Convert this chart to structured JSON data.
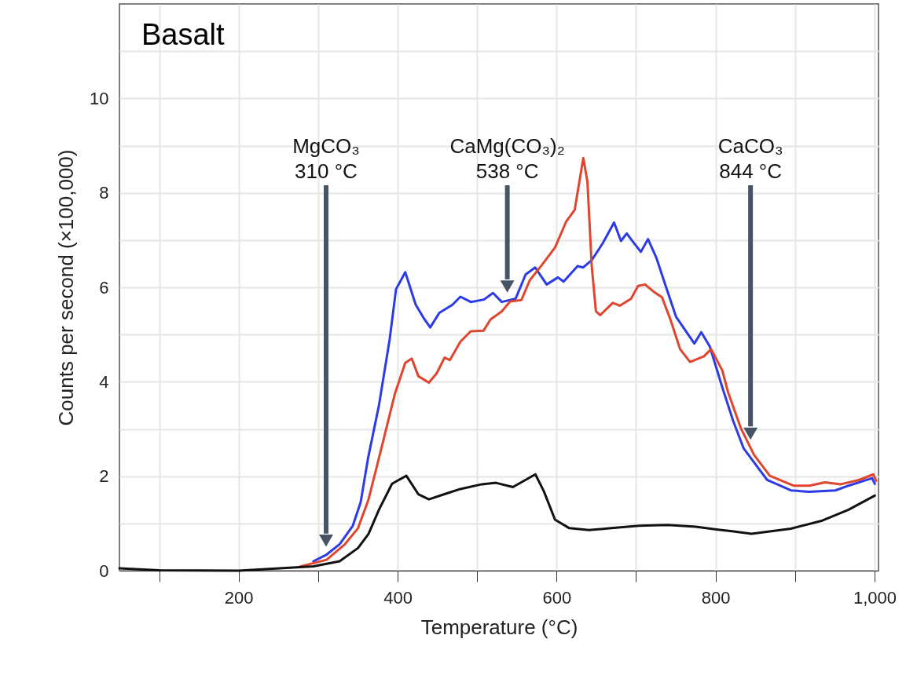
{
  "chart_data": {
    "type": "line",
    "title": "Basalt",
    "xlabel": "Temperature (°C)",
    "ylabel": "Counts per second (×100,000)",
    "xlim": [
      50,
      1005
    ],
    "ylim": [
      0,
      12
    ],
    "xticks": [
      {
        "value": 100,
        "label": null
      },
      200,
      {
        "value": 300,
        "label": null
      },
      400,
      {
        "value": 500,
        "label": null
      },
      600,
      {
        "value": 700,
        "label": null
      },
      800,
      {
        "value": 900,
        "label": null
      },
      {
        "value": 1000,
        "label": "1,000"
      }
    ],
    "yticks": [
      0,
      {
        "value": 1,
        "label": null
      },
      2,
      {
        "value": 3,
        "label": null
      },
      4,
      {
        "value": 5,
        "label": null
      },
      6,
      {
        "value": 7,
        "label": null
      },
      8,
      {
        "value": 9,
        "label": null
      },
      10,
      {
        "value": 11,
        "label": null
      }
    ],
    "grid": true,
    "line_style": "solid",
    "series": [
      {
        "color": "#2b3be6",
        "x": [
          294,
          310.6,
          327,
          343.6,
          353.5,
          363,
          376.5,
          390,
          398,
          409.6,
          422.8,
          432.7,
          441,
          452.5,
          469,
          479,
          492,
          508.6,
          520,
          531,
          548.5,
          561,
          573,
          587.5,
          601.7,
          608.8,
          626.4,
          633.5,
          644,
          658,
          672.3,
          681,
          688.3,
          695.4,
          706,
          715,
          725.4,
          736,
          750.2,
          773.3,
          782,
          792.7,
          808.5,
          822,
          835.3,
          848.5,
          865,
          894.7,
          917.8,
          950.8,
          967.3,
          997,
          1000.3
        ],
        "values": [
          0.2,
          0.34,
          0.56,
          0.95,
          1.45,
          2.4,
          3.5,
          4.9,
          5.96,
          6.32,
          5.63,
          5.35,
          5.15,
          5.46,
          5.63,
          5.8,
          5.69,
          5.74,
          5.88,
          5.69,
          5.76,
          6.27,
          6.42,
          6.06,
          6.21,
          6.12,
          6.45,
          6.42,
          6.57,
          6.93,
          7.37,
          6.98,
          7.14,
          6.98,
          6.75,
          7.02,
          6.63,
          6.09,
          5.38,
          4.81,
          5.05,
          4.75,
          3.88,
          3.18,
          2.59,
          2.29,
          1.92,
          1.7,
          1.67,
          1.7,
          1.8,
          1.96,
          1.84
        ]
      },
      {
        "color": "#e0452e",
        "x": [
          277.5,
          310.6,
          333.7,
          350.2,
          363.4,
          380,
          396.3,
          409.6,
          417.8,
          426,
          439.3,
          449.2,
          459,
          465.7,
          479,
          492,
          508,
          516.8,
          531,
          541.6,
          555.7,
          566.3,
          580.5,
          598,
          612.3,
          622.8,
          633.6,
          638.8,
          644.2,
          649.5,
          654.8,
          670.7,
          679.5,
          693.7,
          702.5,
          711.3,
          721.9,
          732.6,
          743.2,
          755.4,
          767.9,
          785.5,
          794.4,
          808.5,
          815.5,
          832,
          848.5,
          868.3,
          898,
          917.8,
          937.6,
          957.4,
          980.5,
          998.7,
          1002
        ],
        "values": [
          0.09,
          0.23,
          0.56,
          0.9,
          1.51,
          2.62,
          3.73,
          4.4,
          4.49,
          4.12,
          3.98,
          4.18,
          4.51,
          4.46,
          4.85,
          5.07,
          5.08,
          5.32,
          5.49,
          5.7,
          5.73,
          6.15,
          6.45,
          6.84,
          7.4,
          7.64,
          8.74,
          8.24,
          6.45,
          5.49,
          5.41,
          5.67,
          5.61,
          5.76,
          6.03,
          6.06,
          5.91,
          5.79,
          5.32,
          4.69,
          4.42,
          4.54,
          4.69,
          4.24,
          3.79,
          3.01,
          2.45,
          2.01,
          1.8,
          1.8,
          1.87,
          1.83,
          1.92,
          2.04,
          1.9
        ]
      },
      {
        "color": "#111111",
        "x": [
          50,
          100,
          200,
          294,
          327,
          350.2,
          363.4,
          376.5,
          393,
          411,
          426,
          439.3,
          459,
          479,
          506,
          523.8,
          545,
          573.3,
          584,
          598,
          616,
          640.6,
          669,
          704,
          739.6,
          775,
          803,
          818.8,
          845.2,
          894.7,
          934.3,
          967.3,
          1000.3
        ],
        "values": [
          0.05,
          0.01,
          0.0,
          0.09,
          0.2,
          0.48,
          0.78,
          1.29,
          1.84,
          2.01,
          1.62,
          1.51,
          1.62,
          1.73,
          1.83,
          1.86,
          1.77,
          2.04,
          1.68,
          1.08,
          0.9,
          0.86,
          0.9,
          0.95,
          0.97,
          0.93,
          0.87,
          0.84,
          0.78,
          0.89,
          1.06,
          1.29,
          1.59
        ]
      }
    ],
    "ref_lines": [
      {
        "axis": "x",
        "value": 310,
        "label": "MgCO₃\n310 °C",
        "color": "#475465"
      },
      {
        "axis": "x",
        "value": 538,
        "label": "CaMg(CO₃)₂\n538 °C",
        "color": "#475465"
      },
      {
        "axis": "x",
        "value": 844,
        "label": "CaCO₃\n844 °C",
        "color": "#475465"
      }
    ]
  }
}
